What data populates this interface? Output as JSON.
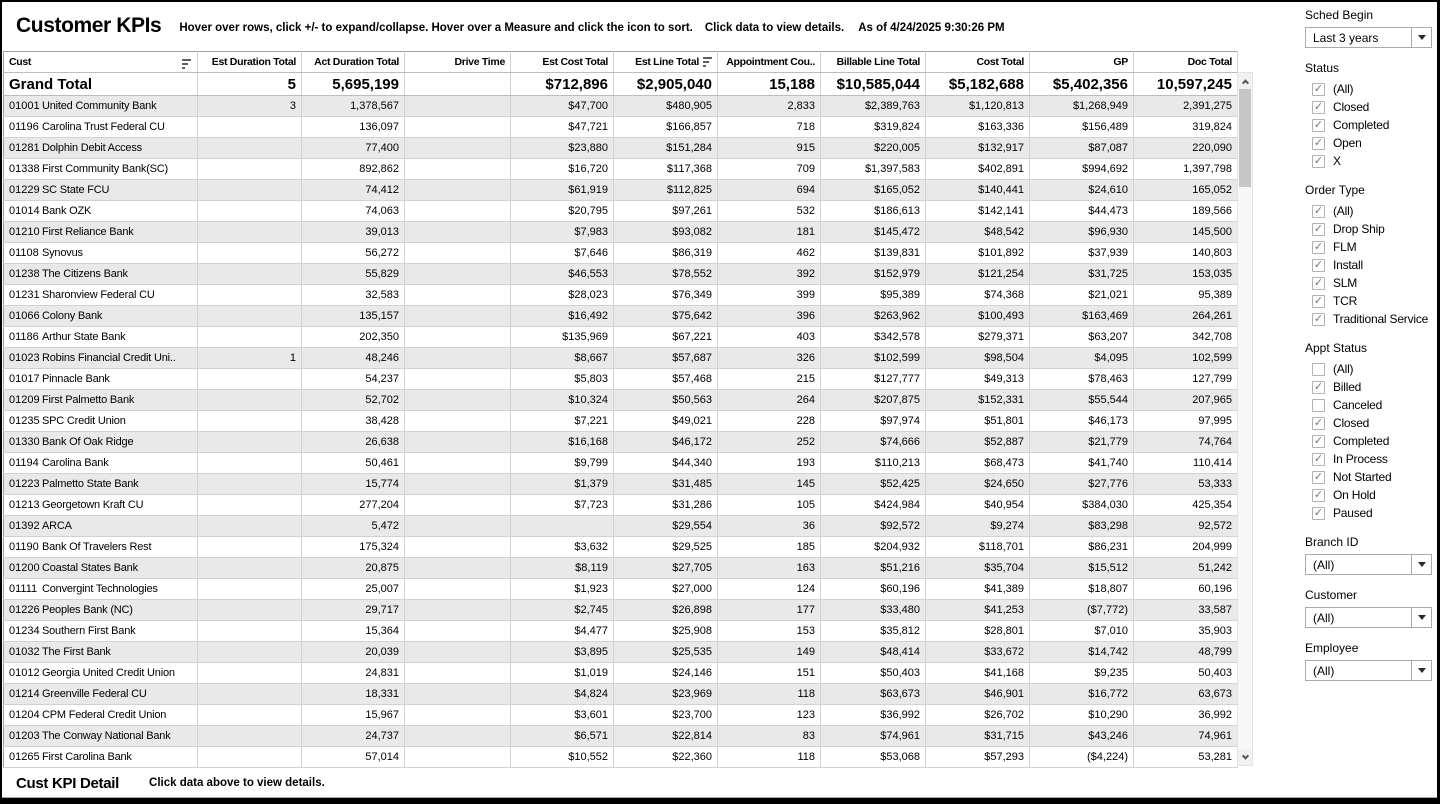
{
  "titlebar": {
    "title": "Customer KPIs",
    "instructions": "Hover over rows, click +/- to expand/collapse. Hover over a Measure and click the icon to sort.",
    "view_hint": "Click data to view details.",
    "as_of": "As of 4/24/2025 9:30:26 PM"
  },
  "table": {
    "columns": [
      {
        "label": "Cust",
        "sorted": true,
        "align": "left"
      },
      {
        "label": "Est Duration Total"
      },
      {
        "label": "Act Duration Total"
      },
      {
        "label": "Drive Time"
      },
      {
        "label": "Est Cost Total"
      },
      {
        "label": "Est Line Total",
        "sorted": true
      },
      {
        "label": "Appointment Cou.."
      },
      {
        "label": "Billable Line Total"
      },
      {
        "label": "Cost Total"
      },
      {
        "label": "GP"
      },
      {
        "label": "Doc Total"
      }
    ],
    "grand_total": {
      "label": "Grand Total",
      "values": [
        "5",
        "5,695,199",
        "",
        "$712,896",
        "$2,905,040",
        "15,188",
        "$10,585,044",
        "$5,182,688",
        "$5,402,356",
        "10,597,245"
      ]
    },
    "rows": [
      {
        "code": "01001",
        "name": "United Community Bank",
        "values": [
          "3",
          "1,378,567",
          "",
          "$47,700",
          "$480,905",
          "2,833",
          "$2,389,763",
          "$1,120,813",
          "$1,268,949",
          "2,391,275"
        ]
      },
      {
        "code": "01196",
        "name": "Carolina Trust Federal CU",
        "values": [
          "",
          "136,097",
          "",
          "$47,721",
          "$166,857",
          "718",
          "$319,824",
          "$163,336",
          "$156,489",
          "319,824"
        ]
      },
      {
        "code": "01281",
        "name": "Dolphin Debit Access",
        "values": [
          "",
          "77,400",
          "",
          "$23,880",
          "$151,284",
          "915",
          "$220,005",
          "$132,917",
          "$87,087",
          "220,090"
        ]
      },
      {
        "code": "01338",
        "name": "First Community Bank(SC)",
        "values": [
          "",
          "892,862",
          "",
          "$16,720",
          "$117,368",
          "709",
          "$1,397,583",
          "$402,891",
          "$994,692",
          "1,397,798"
        ]
      },
      {
        "code": "01229",
        "name": "SC State FCU",
        "values": [
          "",
          "74,412",
          "",
          "$61,919",
          "$112,825",
          "694",
          "$165,052",
          "$140,441",
          "$24,610",
          "165,052"
        ]
      },
      {
        "code": "01014",
        "name": "Bank OZK",
        "values": [
          "",
          "74,063",
          "",
          "$20,795",
          "$97,261",
          "532",
          "$186,613",
          "$142,141",
          "$44,473",
          "189,566"
        ]
      },
      {
        "code": "01210",
        "name": "First Reliance Bank",
        "values": [
          "",
          "39,013",
          "",
          "$7,983",
          "$93,082",
          "181",
          "$145,472",
          "$48,542",
          "$96,930",
          "145,500"
        ]
      },
      {
        "code": "01108",
        "name": "Synovus",
        "values": [
          "",
          "56,272",
          "",
          "$7,646",
          "$86,319",
          "462",
          "$139,831",
          "$101,892",
          "$37,939",
          "140,803"
        ]
      },
      {
        "code": "01238",
        "name": "The Citizens Bank",
        "values": [
          "",
          "55,829",
          "",
          "$46,553",
          "$78,552",
          "392",
          "$152,979",
          "$121,254",
          "$31,725",
          "153,035"
        ]
      },
      {
        "code": "01231",
        "name": "Sharonview Federal CU",
        "values": [
          "",
          "32,583",
          "",
          "$28,023",
          "$76,349",
          "399",
          "$95,389",
          "$74,368",
          "$21,021",
          "95,389"
        ]
      },
      {
        "code": "01066",
        "name": "Colony Bank",
        "values": [
          "",
          "135,157",
          "",
          "$16,492",
          "$75,642",
          "396",
          "$263,962",
          "$100,493",
          "$163,469",
          "264,261"
        ]
      },
      {
        "code": "01186",
        "name": "Arthur State Bank",
        "values": [
          "",
          "202,350",
          "",
          "$135,969",
          "$67,221",
          "403",
          "$342,578",
          "$279,371",
          "$63,207",
          "342,708"
        ]
      },
      {
        "code": "01023",
        "name": "Robins Financial Credit Uni..",
        "values": [
          "1",
          "48,246",
          "",
          "$8,667",
          "$57,687",
          "326",
          "$102,599",
          "$98,504",
          "$4,095",
          "102,599"
        ]
      },
      {
        "code": "01017",
        "name": "Pinnacle Bank",
        "values": [
          "",
          "54,237",
          "",
          "$5,803",
          "$57,468",
          "215",
          "$127,777",
          "$49,313",
          "$78,463",
          "127,799"
        ]
      },
      {
        "code": "01209",
        "name": "First Palmetto Bank",
        "values": [
          "",
          "52,702",
          "",
          "$10,324",
          "$50,563",
          "264",
          "$207,875",
          "$152,331",
          "$55,544",
          "207,965"
        ]
      },
      {
        "code": "01235",
        "name": "SPC Credit Union",
        "values": [
          "",
          "38,428",
          "",
          "$7,221",
          "$49,021",
          "228",
          "$97,974",
          "$51,801",
          "$46,173",
          "97,995"
        ]
      },
      {
        "code": "01330",
        "name": "Bank Of Oak Ridge",
        "values": [
          "",
          "26,638",
          "",
          "$16,168",
          "$46,172",
          "252",
          "$74,666",
          "$52,887",
          "$21,779",
          "74,764"
        ]
      },
      {
        "code": "01194",
        "name": "Carolina Bank",
        "values": [
          "",
          "50,461",
          "",
          "$9,799",
          "$44,340",
          "193",
          "$110,213",
          "$68,473",
          "$41,740",
          "110,414"
        ]
      },
      {
        "code": "01223",
        "name": "Palmetto State Bank",
        "values": [
          "",
          "15,774",
          "",
          "$1,379",
          "$31,485",
          "145",
          "$52,425",
          "$24,650",
          "$27,776",
          "53,333"
        ]
      },
      {
        "code": "01213",
        "name": "Georgetown Kraft CU",
        "values": [
          "",
          "277,204",
          "",
          "$7,723",
          "$31,286",
          "105",
          "$424,984",
          "$40,954",
          "$384,030",
          "425,354"
        ]
      },
      {
        "code": "01392",
        "name": "ARCA",
        "values": [
          "",
          "5,472",
          "",
          "",
          "$29,554",
          "36",
          "$92,572",
          "$9,274",
          "$83,298",
          "92,572"
        ]
      },
      {
        "code": "01190",
        "name": "Bank Of Travelers Rest",
        "values": [
          "",
          "175,324",
          "",
          "$3,632",
          "$29,525",
          "185",
          "$204,932",
          "$118,701",
          "$86,231",
          "204,999"
        ]
      },
      {
        "code": "01200",
        "name": "Coastal States Bank",
        "values": [
          "",
          "20,875",
          "",
          "$8,119",
          "$27,705",
          "163",
          "$51,216",
          "$35,704",
          "$15,512",
          "51,242"
        ]
      },
      {
        "code": "01111",
        "name": "Convergint Technologies",
        "values": [
          "",
          "25,007",
          "",
          "$1,923",
          "$27,000",
          "124",
          "$60,196",
          "$41,389",
          "$18,807",
          "60,196"
        ]
      },
      {
        "code": "01226",
        "name": "Peoples Bank (NC)",
        "values": [
          "",
          "29,717",
          "",
          "$2,745",
          "$26,898",
          "177",
          "$33,480",
          "$41,253",
          "($7,772)",
          "33,587"
        ]
      },
      {
        "code": "01234",
        "name": "Southern First Bank",
        "values": [
          "",
          "15,364",
          "",
          "$4,477",
          "$25,908",
          "153",
          "$35,812",
          "$28,801",
          "$7,010",
          "35,903"
        ]
      },
      {
        "code": "01032",
        "name": "The First Bank",
        "values": [
          "",
          "20,039",
          "",
          "$3,895",
          "$25,535",
          "149",
          "$48,414",
          "$33,672",
          "$14,742",
          "48,799"
        ]
      },
      {
        "code": "01012",
        "name": "Georgia United Credit Union",
        "values": [
          "",
          "24,831",
          "",
          "$1,019",
          "$24,146",
          "151",
          "$50,403",
          "$41,168",
          "$9,235",
          "50,403"
        ]
      },
      {
        "code": "01214",
        "name": "Greenville Federal CU",
        "values": [
          "",
          "18,331",
          "",
          "$4,824",
          "$23,969",
          "118",
          "$63,673",
          "$46,901",
          "$16,772",
          "63,673"
        ]
      },
      {
        "code": "01204",
        "name": "CPM Federal Credit Union",
        "values": [
          "",
          "15,967",
          "",
          "$3,601",
          "$23,700",
          "123",
          "$36,992",
          "$26,702",
          "$10,290",
          "36,992"
        ]
      },
      {
        "code": "01203",
        "name": "The Conway National Bank",
        "values": [
          "",
          "24,737",
          "",
          "$6,571",
          "$22,814",
          "83",
          "$74,961",
          "$31,715",
          "$43,246",
          "74,961"
        ]
      },
      {
        "code": "01265",
        "name": "First Carolina Bank",
        "values": [
          "",
          "57,014",
          "",
          "$10,552",
          "$22,360",
          "118",
          "$53,068",
          "$57,293",
          "($4,224)",
          "53,281"
        ]
      }
    ]
  },
  "filters": {
    "sched_begin": {
      "label": "Sched Begin",
      "value": "Last 3 years"
    },
    "status": {
      "label": "Status",
      "options": [
        {
          "label": "(All)",
          "checked": true
        },
        {
          "label": "Closed",
          "checked": true
        },
        {
          "label": "Completed",
          "checked": true
        },
        {
          "label": "Open",
          "checked": true
        },
        {
          "label": "X",
          "checked": true
        }
      ]
    },
    "order_type": {
      "label": "Order Type",
      "options": [
        {
          "label": "(All)",
          "checked": true
        },
        {
          "label": "Drop Ship",
          "checked": true
        },
        {
          "label": "FLM",
          "checked": true
        },
        {
          "label": "Install",
          "checked": true
        },
        {
          "label": "SLM",
          "checked": true
        },
        {
          "label": "TCR",
          "checked": true
        },
        {
          "label": "Traditional Service",
          "checked": true
        }
      ]
    },
    "appt_status": {
      "label": "Appt Status",
      "options": [
        {
          "label": "(All)",
          "checked": false
        },
        {
          "label": "Billed",
          "checked": true
        },
        {
          "label": "Canceled",
          "checked": false
        },
        {
          "label": "Closed",
          "checked": true
        },
        {
          "label": "Completed",
          "checked": true
        },
        {
          "label": "In Process",
          "checked": true
        },
        {
          "label": "Not Started",
          "checked": true
        },
        {
          "label": "On Hold",
          "checked": true
        },
        {
          "label": "Paused",
          "checked": true
        }
      ]
    },
    "branch_id": {
      "label": "Branch ID",
      "value": "(All)"
    },
    "customer": {
      "label": "Customer",
      "value": "(All)"
    },
    "employee": {
      "label": "Employee",
      "value": "(All)"
    }
  },
  "footer": {
    "title": "Cust KPI Detail",
    "hint": "Click data above to view details."
  },
  "colors": {
    "band": "#e9e9e9",
    "check": "#767676",
    "border": "#d2d2d2"
  }
}
